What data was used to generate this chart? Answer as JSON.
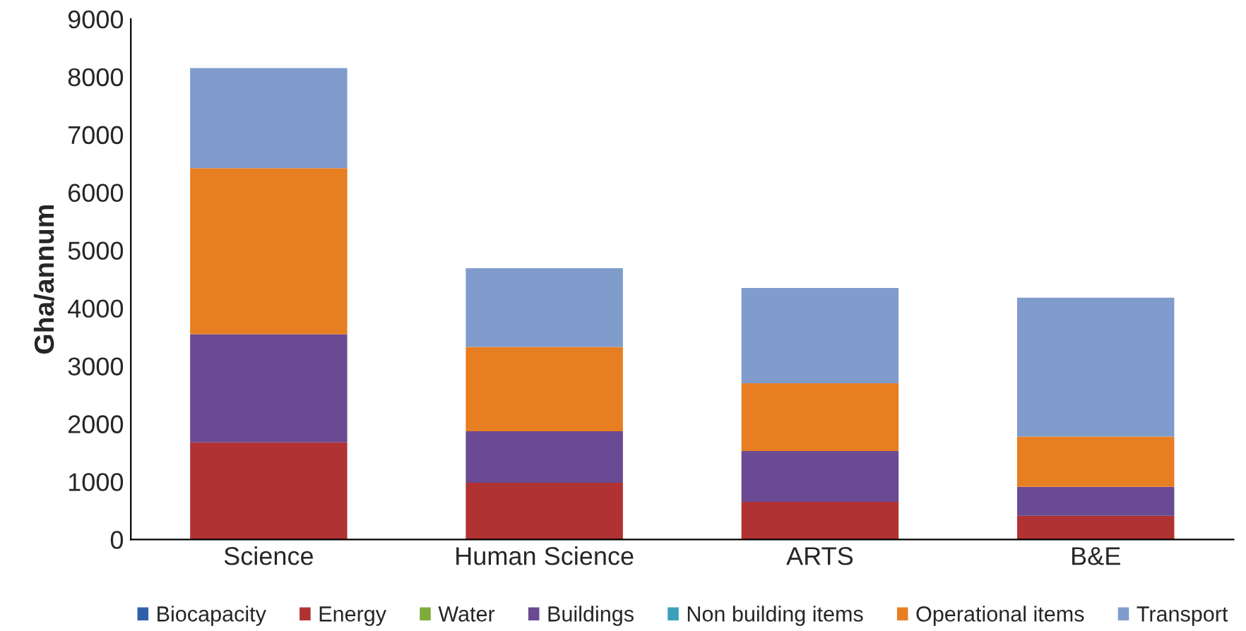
{
  "chart_data": {
    "type": "bar",
    "stacked": true,
    "ylabel": "Gha/annum",
    "categories": [
      "Science",
      "Human Science",
      "ARTS",
      "B&E"
    ],
    "series": [
      {
        "name": "Biocapacity",
        "color": "#2f5fa8",
        "values": [
          0,
          0,
          0,
          0
        ]
      },
      {
        "name": "Energy",
        "color": "#b03232",
        "values": [
          1680,
          980,
          650,
          410
        ]
      },
      {
        "name": "Water",
        "color": "#7fab3a",
        "values": [
          0,
          0,
          0,
          0
        ]
      },
      {
        "name": "Buildings",
        "color": "#6a4a92",
        "values": [
          1870,
          890,
          880,
          500
        ]
      },
      {
        "name": "Non building items",
        "color": "#3ba0b8",
        "values": [
          0,
          0,
          0,
          0
        ]
      },
      {
        "name": "Operational items",
        "color": "#e87e22",
        "values": [
          2870,
          1460,
          1170,
          870
        ]
      },
      {
        "name": "Transport",
        "color": "#7f9ccc",
        "values": [
          1730,
          1360,
          1650,
          2400
        ]
      }
    ],
    "ylim": [
      0,
      9000
    ],
    "yticks": [
      0,
      1000,
      2000,
      3000,
      4000,
      5000,
      6000,
      7000,
      8000,
      9000
    ],
    "grid": false,
    "legend": "bottom"
  }
}
